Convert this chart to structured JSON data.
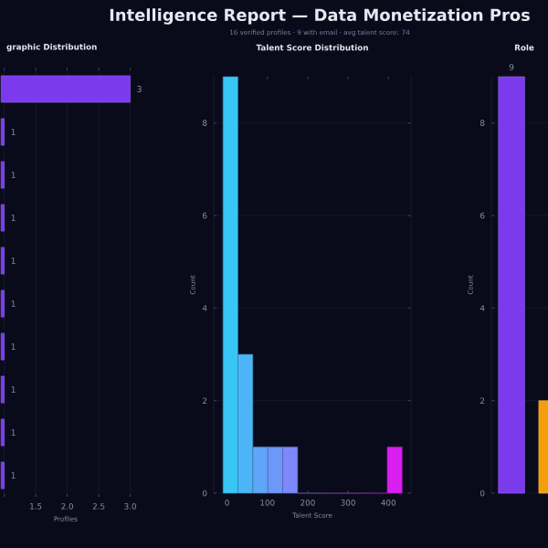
{
  "chart_data": [
    {
      "type": "other",
      "title": "Intelligence Report — Data Monetization Pros",
      "subtitle": "16 verified profiles  ·  9 with email  ·  avg talent score: 74"
    },
    {
      "type": "bar",
      "orientation": "horizontal",
      "title": "graphic Distribution",
      "xlabel": "Profiles",
      "categories": [
        null,
        null,
        null,
        null,
        null,
        null,
        null,
        null,
        null,
        null
      ],
      "values": [
        3,
        1,
        1,
        1,
        1,
        1,
        1,
        1,
        1,
        1
      ],
      "color": "#7c3aed",
      "data_labels": true,
      "xlim": [
        0.95,
        3
      ],
      "xticks": [
        {
          "value": 1,
          "label": null
        },
        {
          "value": 1.5,
          "label": "1.5"
        },
        {
          "value": 2,
          "label": "2.0"
        },
        {
          "value": 2.5,
          "label": "2.5"
        },
        {
          "value": 3,
          "label": "3.0"
        }
      ],
      "grid": "x"
    },
    {
      "type": "histogram",
      "title": "Talent Score Distribution",
      "xlabel": "Talent Score",
      "ylabel": "Count",
      "bins": [
        -10,
        27,
        64,
        101,
        138,
        175,
        212,
        249,
        286,
        323,
        360,
        397,
        434
      ],
      "values": [
        9,
        3,
        1,
        1,
        1,
        0,
        0,
        0,
        0,
        0,
        0,
        1
      ],
      "colors": [
        "#38c6f5",
        "#4db5f7",
        "#5fa5f8",
        "#6d97f9",
        "#7d89fa",
        "#8c7cf9",
        "#9a6ff8",
        "#a862f7",
        "#b655f6",
        "#c448f5",
        "#cf33f2",
        "#d81ff0"
      ],
      "xlim": [
        -33,
        456
      ],
      "xticks": [
        0,
        100,
        200,
        300,
        400
      ],
      "ylim": [
        0,
        9
      ],
      "yticks": [
        0,
        2,
        4,
        6,
        8
      ],
      "grid": "y"
    },
    {
      "type": "bar",
      "title": "Role",
      "ylabel": "Count",
      "categories": [
        null,
        null
      ],
      "values": [
        9,
        2
      ],
      "colors": [
        "#7c3aed",
        "#f59e0b"
      ],
      "value_labels": [
        "9",
        null
      ],
      "ylim": [
        0,
        9
      ],
      "yticks": [
        0,
        2,
        4,
        6,
        8
      ],
      "grid": "y"
    }
  ]
}
